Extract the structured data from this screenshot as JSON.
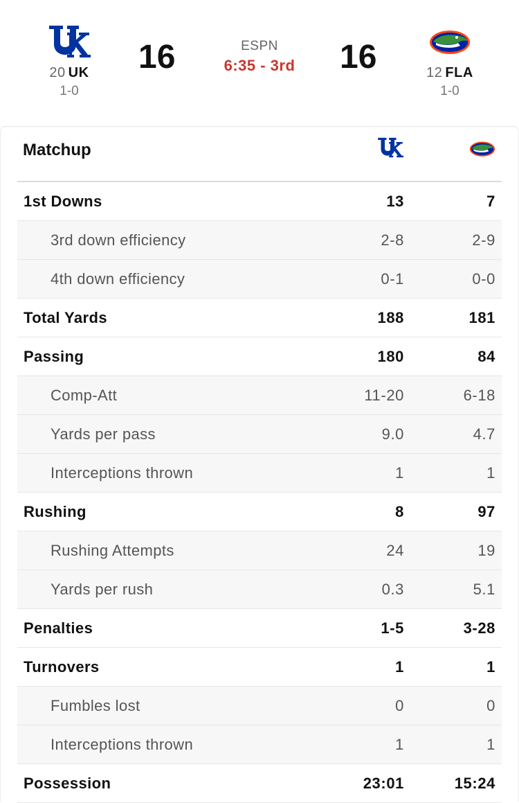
{
  "header": {
    "network": "ESPN",
    "clock": "6:35 - 3rd",
    "home": {
      "rank": "20",
      "abbr": "UK",
      "record": "1-0",
      "score": "16",
      "logo": "kentucky-uk-logo",
      "color": "#0033a0"
    },
    "away": {
      "rank": "12",
      "abbr": "FLA",
      "record": "1-0",
      "score": "16",
      "logo": "florida-gator-logo",
      "color": "#0021a5",
      "accent": "#fa4616"
    }
  },
  "matchup": {
    "title": "Matchup",
    "rows": [
      {
        "label": "1st Downs",
        "uk": "13",
        "fla": "7",
        "type": "main"
      },
      {
        "label": "3rd down efficiency",
        "uk": "2-8",
        "fla": "2-9",
        "type": "sub"
      },
      {
        "label": "4th down efficiency",
        "uk": "0-1",
        "fla": "0-0",
        "type": "sub"
      },
      {
        "label": "Total Yards",
        "uk": "188",
        "fla": "181",
        "type": "main"
      },
      {
        "label": "Passing",
        "uk": "180",
        "fla": "84",
        "type": "main"
      },
      {
        "label": "Comp-Att",
        "uk": "11-20",
        "fla": "6-18",
        "type": "sub"
      },
      {
        "label": "Yards per pass",
        "uk": "9.0",
        "fla": "4.7",
        "type": "sub"
      },
      {
        "label": "Interceptions thrown",
        "uk": "1",
        "fla": "1",
        "type": "sub"
      },
      {
        "label": "Rushing",
        "uk": "8",
        "fla": "97",
        "type": "main"
      },
      {
        "label": "Rushing Attempts",
        "uk": "24",
        "fla": "19",
        "type": "sub"
      },
      {
        "label": "Yards per rush",
        "uk": "0.3",
        "fla": "5.1",
        "type": "sub"
      },
      {
        "label": "Penalties",
        "uk": "1-5",
        "fla": "3-28",
        "type": "main"
      },
      {
        "label": "Turnovers",
        "uk": "1",
        "fla": "1",
        "type": "main"
      },
      {
        "label": "Fumbles lost",
        "uk": "0",
        "fla": "0",
        "type": "sub"
      },
      {
        "label": "Interceptions thrown",
        "uk": "1",
        "fla": "1",
        "type": "sub"
      },
      {
        "label": "Possession",
        "uk": "23:01",
        "fla": "15:24",
        "type": "main"
      }
    ]
  }
}
